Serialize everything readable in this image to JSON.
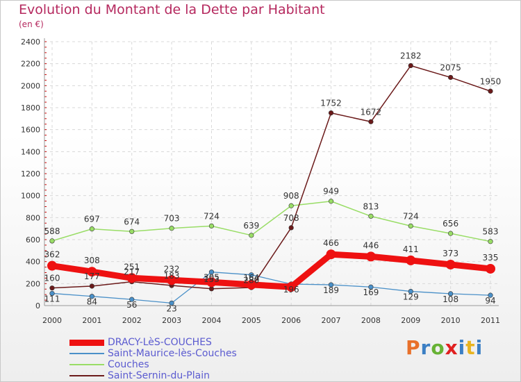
{
  "title": "Evolution du Montant de la Dette par Habitant",
  "unit": "(en €)",
  "logo": "Proxiti",
  "chart_data": {
    "type": "line",
    "categories": [
      "2000",
      "2001",
      "2002",
      "2003",
      "2004",
      "2005",
      "2006",
      "2007",
      "2008",
      "2009",
      "2010",
      "2011"
    ],
    "ylim": [
      0,
      2400
    ],
    "yticks": [
      0,
      200,
      400,
      600,
      800,
      1000,
      1200,
      1400,
      1600,
      1800,
      2000,
      2200,
      2400
    ],
    "grid": true,
    "legend_placement": "bottom-left",
    "series": [
      {
        "name": "DRACY-LèS-COUCHES",
        "color": "#ee1111",
        "values": [
          362,
          308,
          251,
          232,
          213,
          190,
          170,
          466,
          446,
          411,
          373,
          335
        ],
        "labels": [
          "362",
          "308",
          "251",
          "232",
          "",
          "",
          "",
          "466",
          "446",
          "411",
          "373",
          "335"
        ]
      },
      {
        "name": "Saint-Maurice-lès-Couches",
        "color": "#4a90c8",
        "values": [
          111,
          84,
          56,
          23,
          305,
          280,
          196,
          189,
          169,
          129,
          108,
          94
        ],
        "labels": [
          "111",
          "84",
          "56",
          "23",
          "305",
          "280",
          "196",
          "189",
          "169",
          "129",
          "108",
          "94"
        ]
      },
      {
        "name": "Couches",
        "color": "#99dd66",
        "values": [
          588,
          697,
          674,
          703,
          724,
          639,
          908,
          949,
          813,
          724,
          656,
          583
        ],
        "labels": [
          "588",
          "697",
          "674",
          "703",
          "724",
          "639",
          "908",
          "949",
          "813",
          "724",
          "656",
          "583"
        ]
      },
      {
        "name": "Saint-Sernin-du-Plain",
        "color": "#6b1a1a",
        "values": [
          160,
          177,
          217,
          183,
          153,
          164,
          708,
          1752,
          1672,
          2182,
          2075,
          1950
        ],
        "labels": [
          "160",
          "177",
          "217",
          "183",
          "153",
          "164",
          "708",
          "1752",
          "1672",
          "2182",
          "2075",
          "1950"
        ]
      }
    ]
  }
}
